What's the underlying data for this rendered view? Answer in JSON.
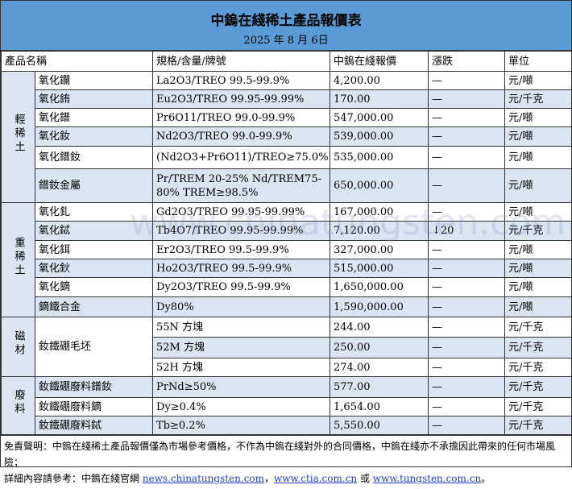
{
  "title": "中鎢在綫稀土產品報價表",
  "date": "2025 年 8 月 6日",
  "headers": [
    "產品名稱",
    "規格/含量/牌號",
    "中鎢在綫報價",
    "漲跌",
    "單位"
  ],
  "groups": [
    {
      "label": "輕稀土",
      "rows": [
        {
          "name": "氧化鑭",
          "spec": "La2O3/TREO 99.5-99.9%",
          "price": "4,200.00",
          "change": "—",
          "unit": "元/噸"
        },
        {
          "name": "氧化銪",
          "spec": "Eu2O3/TREO 99.95-99.99%",
          "price": "170.00",
          "change": "—",
          "unit": "元/千克"
        },
        {
          "name": "氧化鐠",
          "spec": "Pr6O11/TREO 99.0-99.9%",
          "price": "547,000.00",
          "change": "—",
          "unit": "元/噸"
        },
        {
          "name": "氧化釹",
          "spec": "Nd2O3/TREO 99.0-99.9%",
          "price": "539,000.00",
          "change": "—",
          "unit": "元/噸"
        },
        {
          "name": "氧化鐠釹",
          "spec": "(Nd2O3+Pr6O11)/TREO≥75.0%",
          "price": "535,000.00",
          "change": "—",
          "unit": "元/噸"
        },
        {
          "name": "鐠釹金屬",
          "spec": "Pr/TREM 20-25% Nd/TREM75-80% TREM≥98.5%",
          "price": "650,000.00",
          "change": "—",
          "unit": "元/噸"
        }
      ]
    },
    {
      "label": "重稀土",
      "rows": [
        {
          "name": "氧化釓",
          "spec": "Gd2O3/TREO 99.95-99.99%",
          "price": "167,000.00",
          "change": "—",
          "unit": "元/噸"
        },
        {
          "name": "氧化鋱",
          "spec": "Tb4O7/TREO 99.95-99.99%",
          "price": "7,120.00",
          "change": "↓20",
          "unit": "元/千克"
        },
        {
          "name": "氧化鉺",
          "spec": "Er2O3/TREO 99.5-99.9%",
          "price": "327,000.00",
          "change": "—",
          "unit": "元/噸"
        },
        {
          "name": "氧化鈥",
          "spec": "Ho2O3/TREO 99.5-99.9%",
          "price": "515,000.00",
          "change": "—",
          "unit": "元/噸"
        },
        {
          "name": "氧化鏑",
          "spec": "Dy2O3/TREO 99.5-99.9%",
          "price": "1,650,000.00",
          "change": "—",
          "unit": "元/噸"
        },
        {
          "name": "鏑鐵合金",
          "spec": "Dy80%",
          "price": "1,590,000.00",
          "change": "—",
          "unit": "元/噸"
        }
      ]
    },
    {
      "label": "磁材",
      "name": "釹鐵硼毛坯",
      "rows": [
        {
          "spec": "55N 方塊",
          "price": "244.00",
          "change": "—",
          "unit": "元/千克"
        },
        {
          "spec": "52M 方塊",
          "price": "250.00",
          "change": "—",
          "unit": "元/千克"
        },
        {
          "spec": "52H 方塊",
          "price": "274.00",
          "change": "—",
          "unit": "元/千克"
        }
      ]
    },
    {
      "label": "廢料",
      "rows": [
        {
          "name": "釹鐵硼廢料鐠釹",
          "spec": "PrNd≥50%",
          "price": "577.00",
          "change": "—",
          "unit": "元/千克"
        },
        {
          "name": "釹鐵硼廢料鏑",
          "spec": "Dy≥0.4%",
          "price": "1,654.00",
          "change": "—",
          "unit": "元/千克"
        },
        {
          "name": "釹鐵硼廢料鋱",
          "spec": "Tb≥0.2%",
          "price": "5,550.00",
          "change": "—",
          "unit": "元/千克"
        }
      ]
    }
  ],
  "footer": {
    "disclaimer": "免責聲明：中鎢在綫稀土產品報價僅為市場參考價格，不作為中鎢在綫對外的合同價格，中鎢在綫亦不承擔因此帶來的任何市場風險；",
    "more_prefix": "詳細內容請參考：中鎢在綫官網 ",
    "link1": "news.chinatungsten.com",
    "sep1": "，",
    "link2": "www.ctia.com.cn",
    "sep2": " 或 ",
    "link3": "www.tungsten.com.cn",
    "end": "。"
  },
  "watermark": "www.chinatungsten.com",
  "colors": {
    "header": "#5b9bd5",
    "alt_row": "#dbe5f1"
  }
}
